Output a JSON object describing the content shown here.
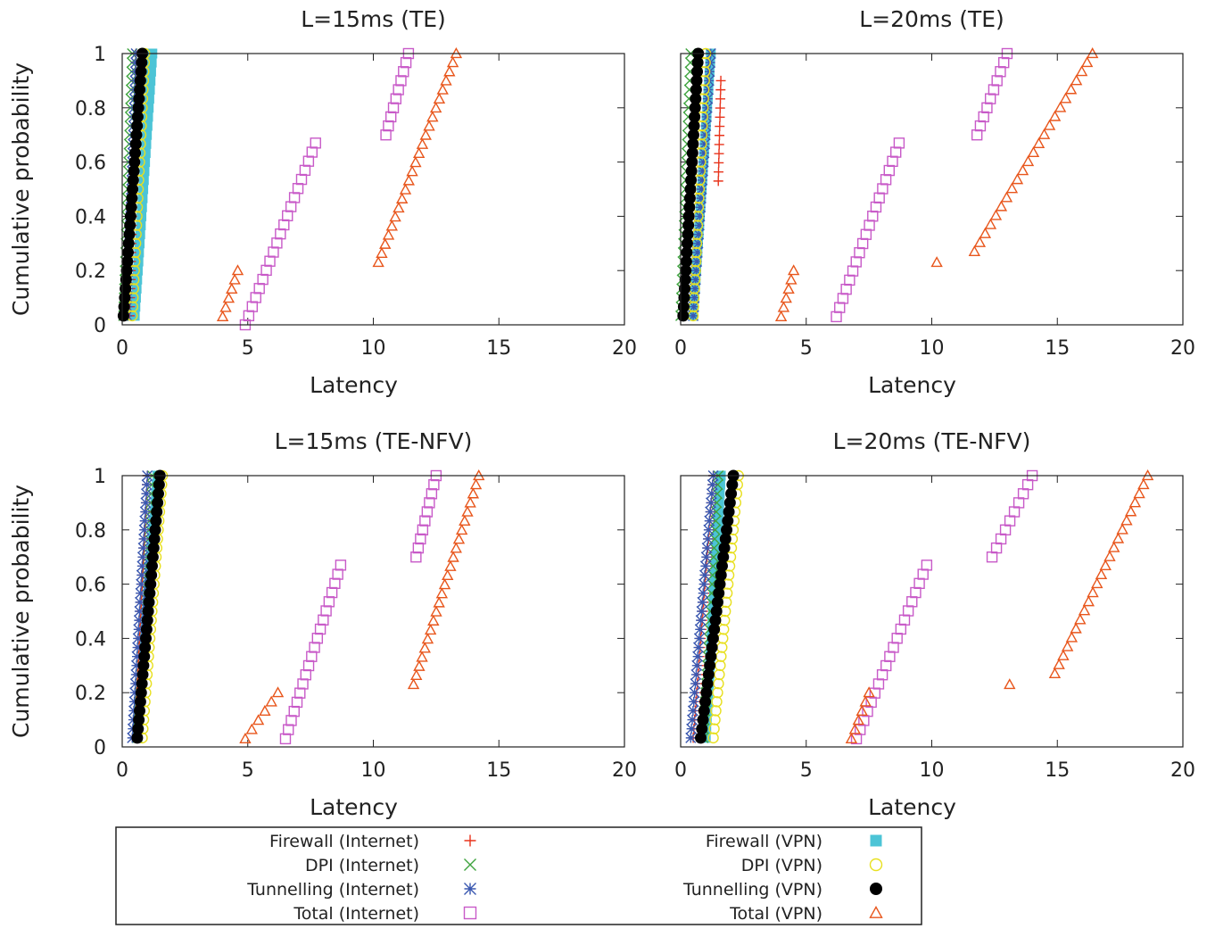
{
  "chart_data": [
    {
      "type": "scatter",
      "title": "L=15ms (TE)",
      "xlabel": "Latency",
      "ylabel": "Cumulative probability",
      "xlim": [
        0,
        20
      ],
      "ylim": [
        0,
        1
      ],
      "xticks": [
        "0",
        "5",
        "10",
        "15",
        "20"
      ],
      "yticks": [
        "0",
        "0.2",
        "0.4",
        "0.6",
        "0.8",
        "1"
      ],
      "series": [
        {
          "name": "Firewall (Internet)",
          "ranges": [
            [
              0.3,
              0.55
            ]
          ]
        },
        {
          "name": "DPI (Internet)",
          "ranges": [
            [
              0.05,
              0.4
            ]
          ]
        },
        {
          "name": "Tunnelling (Internet)",
          "ranges": [
            [
              0.2,
              0.55
            ]
          ]
        },
        {
          "name": "Total (Internet)",
          "ranges": [
            [
              4.9,
              7.7,
              0,
              0.67
            ],
            [
              10.5,
              11.4,
              0.7,
              1.0
            ]
          ]
        },
        {
          "name": "Firewall (VPN)",
          "ranges": [
            [
              0.5,
              1.2
            ]
          ]
        },
        {
          "name": "DPI (VPN)",
          "ranges": [
            [
              0.4,
              0.9
            ]
          ]
        },
        {
          "name": "Tunnelling (VPN)",
          "ranges": [
            [
              0.05,
              0.8
            ]
          ]
        },
        {
          "name": "Total (VPN)",
          "ranges": [
            [
              4.0,
              4.6,
              0.03,
              0.2
            ],
            [
              10.2,
              13.3,
              0.23,
              1.0
            ]
          ]
        }
      ]
    },
    {
      "type": "scatter",
      "title": "L=20ms (TE)",
      "xlabel": "Latency",
      "ylabel": "",
      "xlim": [
        0,
        20
      ],
      "ylim": [
        0,
        1
      ],
      "xticks": [
        "0",
        "5",
        "10",
        "15",
        "20"
      ],
      "yticks": [],
      "series": [
        {
          "name": "Firewall (Internet)",
          "ranges": [
            [
              1.5,
              1.6,
              0.53,
              0.9
            ]
          ]
        },
        {
          "name": "DPI (Internet)",
          "ranges": [
            [
              0.0,
              0.4
            ]
          ]
        },
        {
          "name": "Tunnelling (Internet)",
          "ranges": [
            [
              0.5,
              1.2
            ]
          ]
        },
        {
          "name": "Total (Internet)",
          "ranges": [
            [
              6.2,
              8.7,
              0.03,
              0.67
            ],
            [
              11.8,
              13.0,
              0.7,
              1.0
            ]
          ]
        },
        {
          "name": "Firewall (VPN)",
          "ranges": [
            [
              0.5,
              1.2
            ]
          ]
        },
        {
          "name": "DPI (VPN)",
          "ranges": [
            [
              0.5,
              1.0
            ]
          ]
        },
        {
          "name": "Tunnelling (VPN)",
          "ranges": [
            [
              0.1,
              0.7
            ]
          ]
        },
        {
          "name": "Total (VPN)",
          "ranges": [
            [
              4.0,
              4.5,
              0.03,
              0.2
            ],
            [
              10.2,
              10.2,
              0.23,
              0.23
            ],
            [
              11.7,
              16.4,
              0.27,
              1.0
            ]
          ]
        }
      ]
    },
    {
      "type": "scatter",
      "title": "L=15ms (TE-NFV)",
      "xlabel": "Latency",
      "ylabel": "Cumulative probability",
      "xlim": [
        0,
        20
      ],
      "ylim": [
        0,
        1
      ],
      "xticks": [
        "0",
        "5",
        "10",
        "15",
        "20"
      ],
      "yticks": [
        "0",
        "0.2",
        "0.4",
        "0.6",
        "0.8",
        "1"
      ],
      "series": [
        {
          "name": "Firewall (Internet)",
          "ranges": [
            [
              0.5,
              1.0
            ]
          ]
        },
        {
          "name": "DPI (Internet)",
          "ranges": [
            [
              0.6,
              1.2
            ]
          ]
        },
        {
          "name": "Tunnelling (Internet)",
          "ranges": [
            [
              0.4,
              1.0
            ]
          ]
        },
        {
          "name": "Total (Internet)",
          "ranges": [
            [
              6.5,
              8.7,
              0.03,
              0.67
            ],
            [
              11.7,
              12.5,
              0.7,
              1.0
            ]
          ]
        },
        {
          "name": "Firewall (VPN)",
          "ranges": [
            [
              0.6,
              1.4
            ]
          ]
        },
        {
          "name": "DPI (VPN)",
          "ranges": [
            [
              0.8,
              1.6
            ]
          ]
        },
        {
          "name": "Tunnelling (VPN)",
          "ranges": [
            [
              0.6,
              1.5
            ]
          ]
        },
        {
          "name": "Total (VPN)",
          "ranges": [
            [
              4.9,
              6.2,
              0.03,
              0.2
            ],
            [
              11.6,
              14.2,
              0.23,
              1.0
            ]
          ]
        }
      ]
    },
    {
      "type": "scatter",
      "title": "L=20ms (TE-NFV)",
      "xlabel": "Latency",
      "ylabel": "",
      "xlim": [
        0,
        20
      ],
      "ylim": [
        0,
        1
      ],
      "xticks": [
        "0",
        "5",
        "10",
        "15",
        "20"
      ],
      "yticks": [],
      "series": [
        {
          "name": "Firewall (Internet)",
          "ranges": [
            [
              0.5,
              1.3
            ]
          ]
        },
        {
          "name": "DPI (Internet)",
          "ranges": [
            [
              0.9,
              1.5
            ]
          ]
        },
        {
          "name": "Tunnelling (Internet)",
          "ranges": [
            [
              0.4,
              1.3
            ]
          ]
        },
        {
          "name": "Total (Internet)",
          "ranges": [
            [
              7.0,
              9.8,
              0.03,
              0.67
            ],
            [
              12.4,
              14.0,
              0.7,
              1.0
            ]
          ]
        },
        {
          "name": "Firewall (VPN)",
          "ranges": [
            [
              1.0,
              1.6
            ]
          ]
        },
        {
          "name": "DPI (VPN)",
          "ranges": [
            [
              1.3,
              2.3
            ]
          ]
        },
        {
          "name": "Tunnelling (VPN)",
          "ranges": [
            [
              0.8,
              2.1
            ]
          ]
        },
        {
          "name": "Total (VPN)",
          "ranges": [
            [
              6.8,
              7.5,
              0.03,
              0.2
            ],
            [
              13.1,
              13.1,
              0.23,
              0.23
            ],
            [
              14.9,
              18.6,
              0.27,
              1.0
            ]
          ]
        }
      ]
    }
  ],
  "legend": {
    "placement": "bottom",
    "left": [
      {
        "label": "Firewall (Internet)",
        "marker": "plus",
        "color": "#e8341c"
      },
      {
        "label": "DPI (Internet)",
        "marker": "cross",
        "color": "#3ea33e"
      },
      {
        "label": "Tunnelling (Internet)",
        "marker": "star",
        "color": "#3a58b0"
      },
      {
        "label": "Total (Internet)",
        "marker": "square-open",
        "color": "#c85ac8"
      }
    ],
    "right": [
      {
        "label": "Firewall (VPN)",
        "marker": "square-filled",
        "color": "#4cc4d6"
      },
      {
        "label": "DPI (VPN)",
        "marker": "circle-open",
        "color": "#e8e020"
      },
      {
        "label": "Tunnelling (VPN)",
        "marker": "circle-filled",
        "color": "#000000"
      },
      {
        "label": "Total (VPN)",
        "marker": "triangle-open",
        "color": "#e8561c"
      }
    ]
  }
}
